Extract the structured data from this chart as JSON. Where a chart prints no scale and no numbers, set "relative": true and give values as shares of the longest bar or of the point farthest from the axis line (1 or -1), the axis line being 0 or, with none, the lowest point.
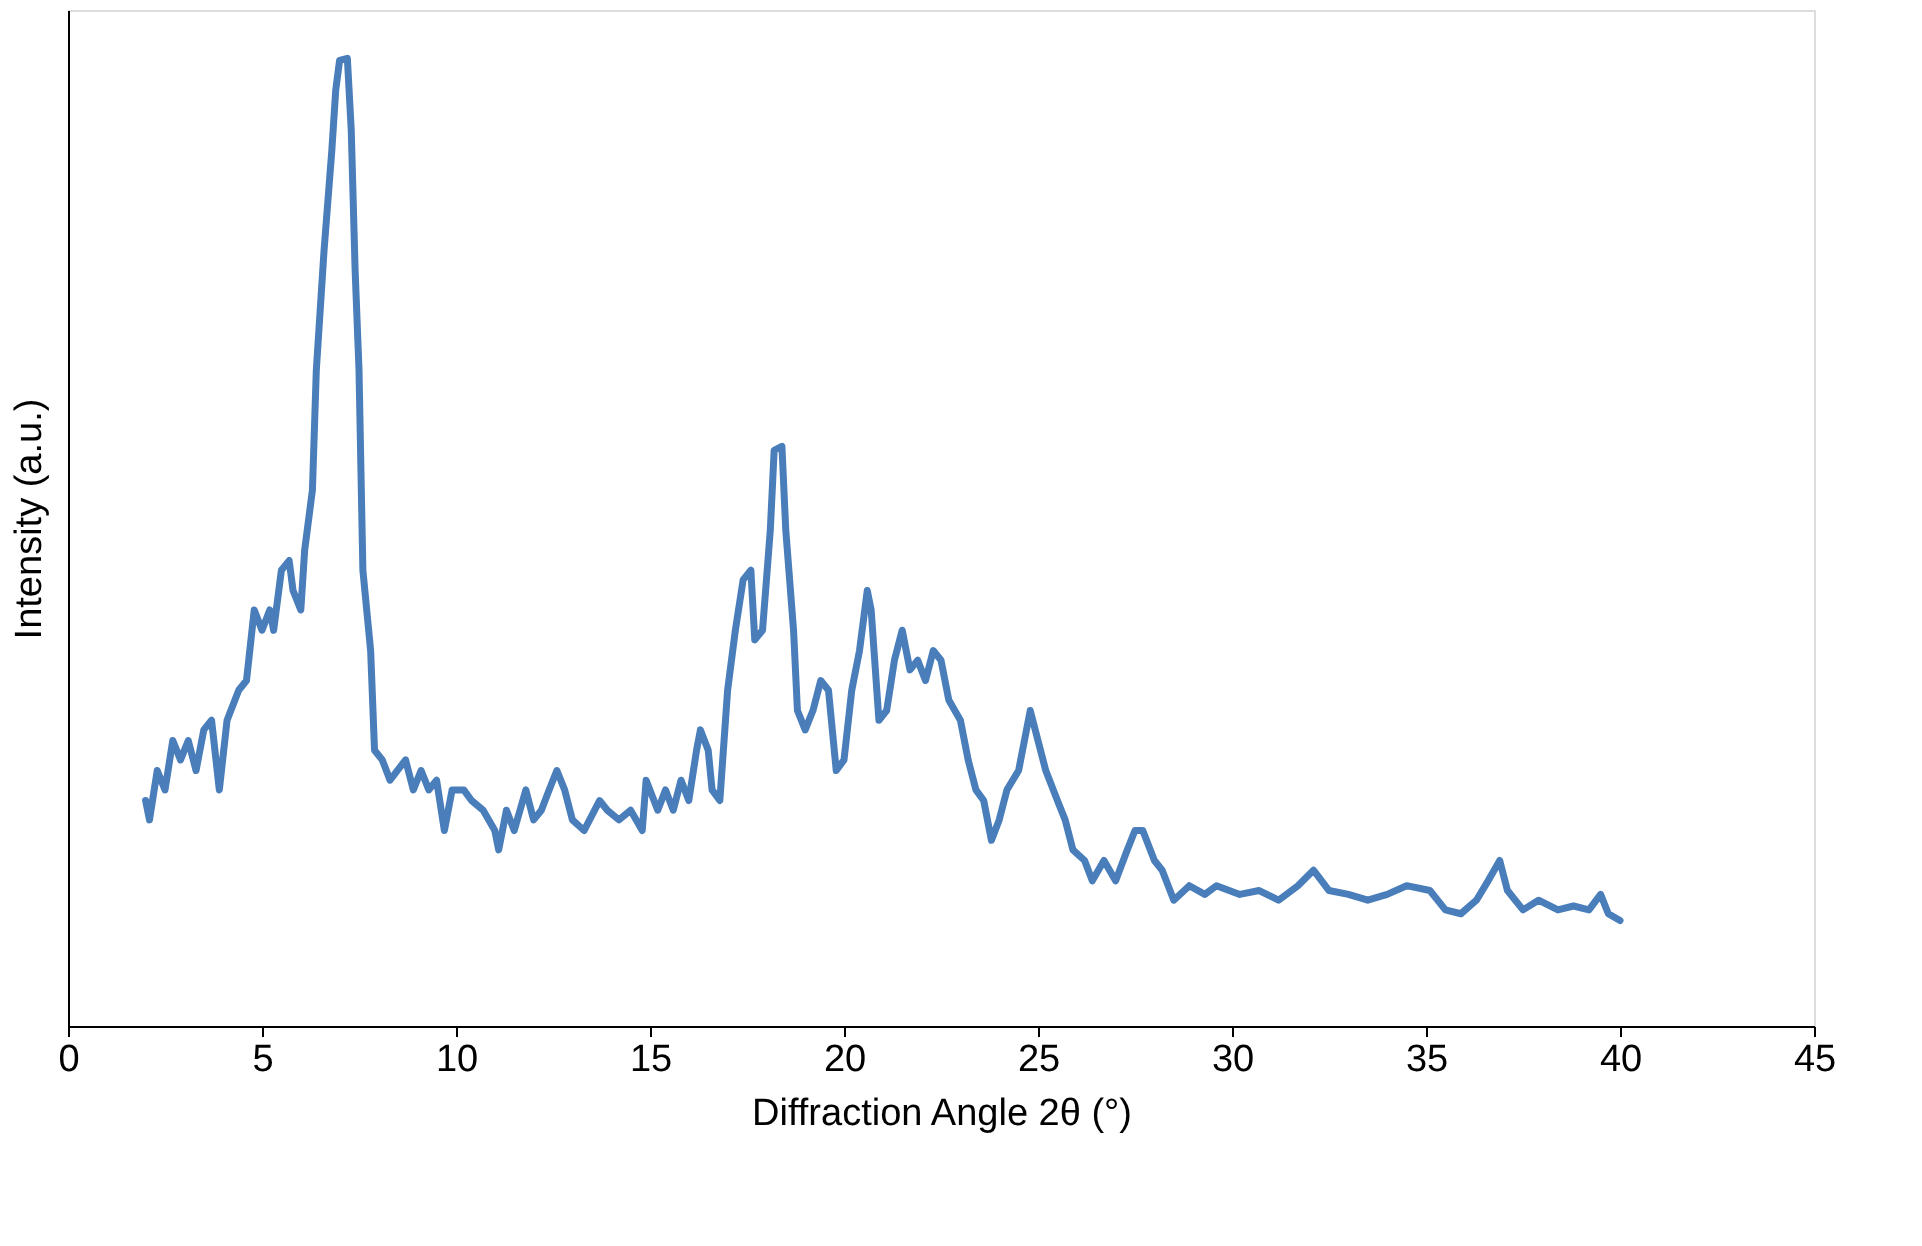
{
  "chart_data": {
    "type": "line",
    "relative": true,
    "xlabel": "Diffraction Angle 2θ (°)",
    "ylabel": "Intensity (a.u.)",
    "xlim": [
      0,
      45
    ],
    "xticks": [
      0,
      5,
      10,
      15,
      20,
      25,
      30,
      35,
      40,
      45
    ],
    "grid": false,
    "legend": false,
    "marker": "none",
    "line_style": "solid",
    "series": [
      {
        "color": "#4a7ebb",
        "x": [
          2.0,
          2.1,
          2.3,
          2.5,
          2.7,
          2.9,
          3.1,
          3.3,
          3.5,
          3.7,
          3.9,
          4.1,
          4.4,
          4.6,
          4.8,
          5.0,
          5.2,
          5.3,
          5.5,
          5.7,
          5.8,
          6.0,
          6.1,
          6.3,
          6.4,
          6.6,
          6.8,
          6.9,
          7.0,
          7.2,
          7.3,
          7.4,
          7.5,
          7.6,
          7.8,
          7.9,
          8.1,
          8.3,
          8.7,
          8.9,
          9.1,
          9.3,
          9.5,
          9.7,
          9.9,
          10.2,
          10.4,
          10.7,
          11.0,
          11.1,
          11.3,
          11.5,
          11.8,
          12.0,
          12.2,
          12.4,
          12.6,
          12.8,
          13.0,
          13.3,
          13.7,
          13.9,
          14.2,
          14.5,
          14.8,
          14.9,
          15.2,
          15.4,
          15.6,
          15.8,
          16.0,
          16.2,
          16.3,
          16.5,
          16.6,
          16.8,
          17.0,
          17.2,
          17.4,
          17.6,
          17.7,
          17.9,
          18.1,
          18.2,
          18.4,
          18.5,
          18.7,
          18.8,
          19.0,
          19.2,
          19.4,
          19.6,
          19.8,
          20.0,
          20.2,
          20.4,
          20.6,
          20.7,
          20.9,
          21.1,
          21.3,
          21.5,
          21.7,
          21.9,
          22.1,
          22.3,
          22.5,
          22.7,
          23.0,
          23.2,
          23.4,
          23.6,
          23.8,
          24.0,
          24.2,
          24.5,
          24.8,
          25.0,
          25.2,
          25.5,
          25.7,
          25.9,
          26.2,
          26.4,
          26.7,
          27.0,
          27.3,
          27.5,
          27.7,
          28.0,
          28.2,
          28.5,
          28.9,
          29.3,
          29.6,
          30.2,
          30.7,
          31.2,
          31.7,
          32.1,
          32.5,
          33.0,
          33.5,
          34.0,
          34.5,
          35.1,
          35.5,
          35.9,
          36.3,
          36.6,
          36.9,
          37.1,
          37.5,
          37.9,
          38.4,
          38.8,
          39.2,
          39.5,
          39.7,
          40.0
        ],
        "values": [
          0.233,
          0.213,
          0.264,
          0.244,
          0.295,
          0.275,
          0.295,
          0.264,
          0.306,
          0.316,
          0.244,
          0.316,
          0.347,
          0.357,
          0.43,
          0.409,
          0.43,
          0.409,
          0.471,
          0.481,
          0.45,
          0.43,
          0.492,
          0.554,
          0.678,
          0.802,
          0.905,
          0.967,
          0.998,
          1.0,
          0.926,
          0.781,
          0.678,
          0.471,
          0.388,
          0.285,
          0.275,
          0.254,
          0.275,
          0.244,
          0.264,
          0.244,
          0.254,
          0.202,
          0.244,
          0.244,
          0.233,
          0.223,
          0.202,
          0.182,
          0.223,
          0.202,
          0.244,
          0.213,
          0.223,
          0.244,
          0.264,
          0.244,
          0.213,
          0.202,
          0.233,
          0.223,
          0.213,
          0.223,
          0.202,
          0.254,
          0.223,
          0.244,
          0.223,
          0.254,
          0.233,
          0.285,
          0.306,
          0.285,
          0.244,
          0.233,
          0.347,
          0.409,
          0.461,
          0.471,
          0.399,
          0.409,
          0.512,
          0.595,
          0.599,
          0.512,
          0.409,
          0.326,
          0.306,
          0.326,
          0.357,
          0.347,
          0.264,
          0.275,
          0.347,
          0.388,
          0.45,
          0.43,
          0.316,
          0.326,
          0.378,
          0.409,
          0.368,
          0.378,
          0.357,
          0.388,
          0.378,
          0.337,
          0.316,
          0.275,
          0.244,
          0.233,
          0.192,
          0.213,
          0.244,
          0.264,
          0.326,
          0.295,
          0.264,
          0.233,
          0.213,
          0.182,
          0.171,
          0.15,
          0.171,
          0.15,
          0.182,
          0.202,
          0.202,
          0.171,
          0.161,
          0.13,
          0.145,
          0.136,
          0.145,
          0.136,
          0.14,
          0.13,
          0.145,
          0.161,
          0.14,
          0.136,
          0.13,
          0.136,
          0.145,
          0.14,
          0.12,
          0.116,
          0.13,
          0.15,
          0.171,
          0.14,
          0.12,
          0.13,
          0.12,
          0.124,
          0.12,
          0.136,
          0.116,
          0.109
        ]
      }
    ]
  }
}
